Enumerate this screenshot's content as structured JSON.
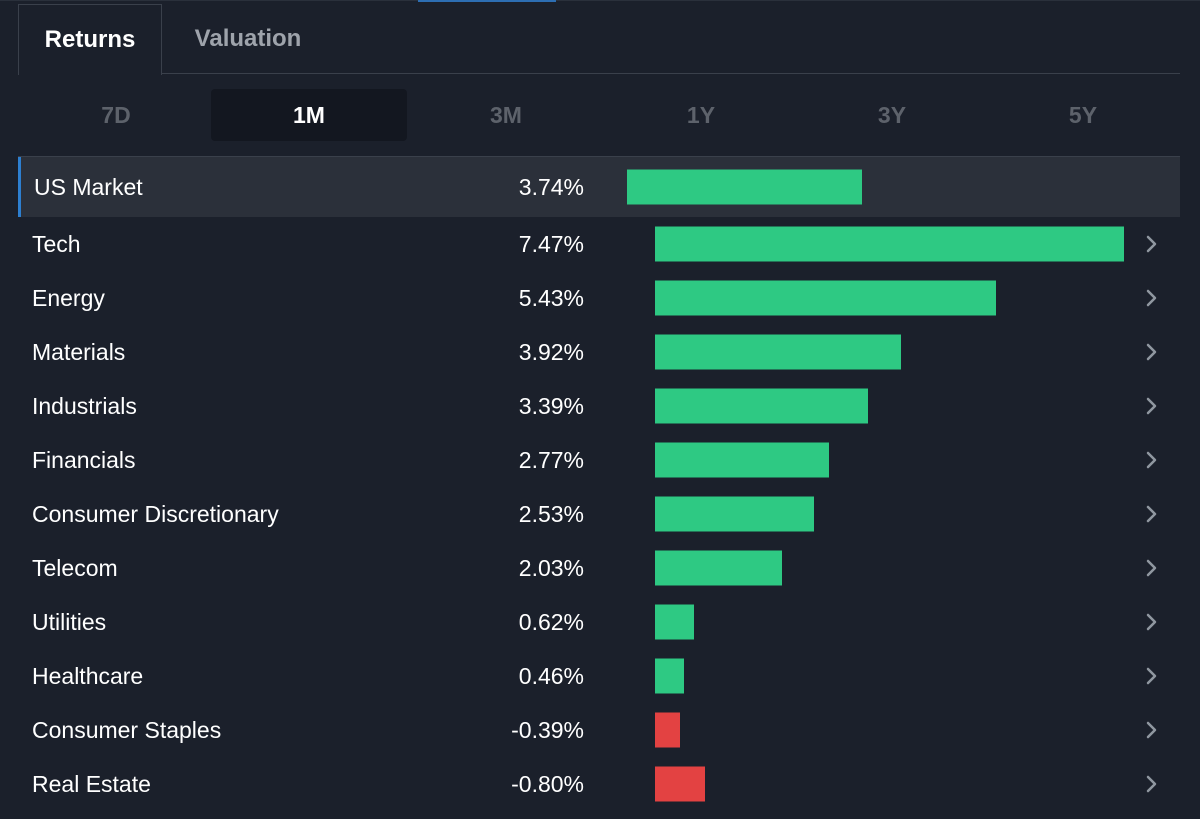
{
  "tabs": [
    {
      "label": "Returns",
      "active": true
    },
    {
      "label": "Valuation",
      "active": false
    }
  ],
  "periods": [
    {
      "label": "7D",
      "active": false
    },
    {
      "label": "1M",
      "active": true
    },
    {
      "label": "3M",
      "active": false
    },
    {
      "label": "1Y",
      "active": false
    },
    {
      "label": "3Y",
      "active": false
    },
    {
      "label": "5Y",
      "active": false
    }
  ],
  "colors": {
    "positive": "#2ec983",
    "negative": "#e34242",
    "accent": "#2d7fd0",
    "chevron": "#9097a0"
  },
  "chart_data": {
    "type": "bar",
    "orientation": "horizontal",
    "categories": [
      "US Market",
      "Tech",
      "Energy",
      "Materials",
      "Industrials",
      "Financials",
      "Consumer Discretionary",
      "Telecom",
      "Utilities",
      "Healthcare",
      "Consumer Staples",
      "Real Estate"
    ],
    "values": [
      3.74,
      7.47,
      5.43,
      3.92,
      3.39,
      2.77,
      2.53,
      2.03,
      0.62,
      0.46,
      -0.39,
      -0.8
    ],
    "labels": [
      "3.74%",
      "7.47%",
      "5.43%",
      "3.92%",
      "3.39%",
      "2.77%",
      "2.53%",
      "2.03%",
      "0.62%",
      "0.46%",
      "-0.39%",
      "-0.80%"
    ],
    "title": "",
    "xlabel": "",
    "ylabel": ""
  },
  "icons": {
    "row_chevron": "chevron-right-icon"
  }
}
